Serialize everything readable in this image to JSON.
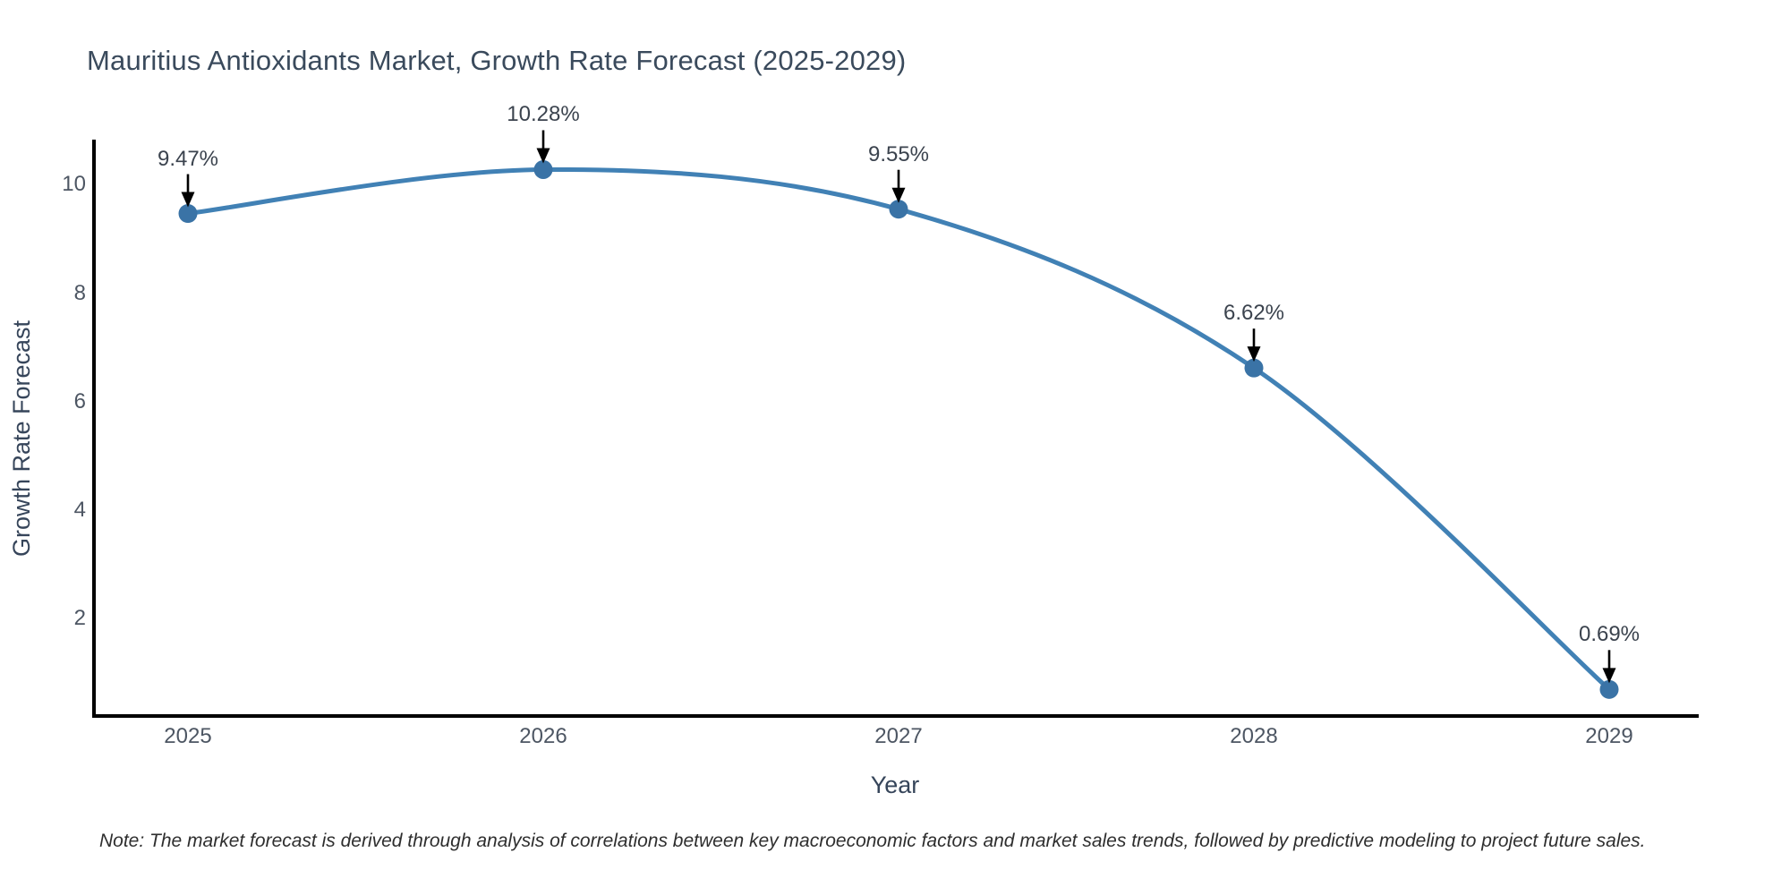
{
  "note": "Note: The market forecast is derived through analysis of correlations between key macroeconomic factors and market sales trends, followed by predictive modeling to project future sales.",
  "chart_data": {
    "type": "line",
    "title": "Mauritius Antioxidants Market, Growth Rate Forecast (2025-2029)",
    "xlabel": "Year",
    "ylabel": "Growth Rate Forecast",
    "x": [
      2025,
      2026,
      2027,
      2028,
      2029
    ],
    "values": [
      9.47,
      10.28,
      9.55,
      6.62,
      0.69
    ],
    "point_labels": [
      "9.47%",
      "10.28%",
      "9.55%",
      "6.62%",
      "0.69%"
    ],
    "xtick_labels": [
      "2025",
      "2026",
      "2027",
      "2028",
      "2029"
    ],
    "yticks": [
      2,
      4,
      6,
      8,
      10
    ],
    "ylim": [
      0.2,
      10.8
    ],
    "grid": false,
    "legend": false,
    "smooth_curve": true,
    "line_color": "#4181b5",
    "marker_color": "#3a73a6",
    "axis_color": "#000000",
    "arrow_color": "#000000"
  }
}
